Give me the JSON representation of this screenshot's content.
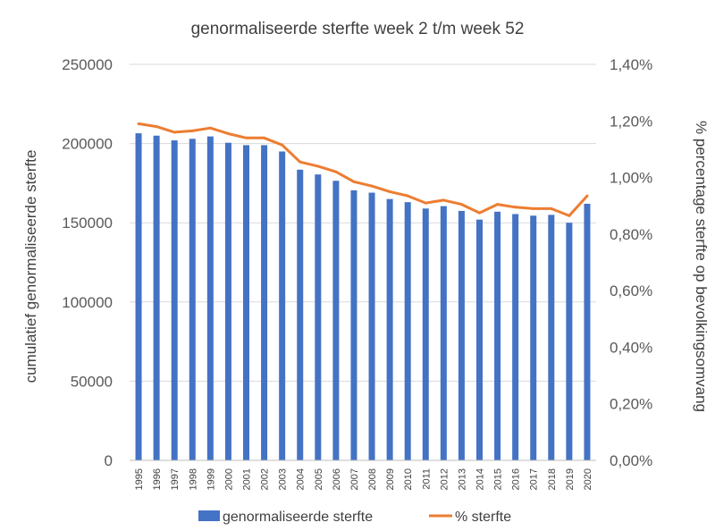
{
  "chart_data": {
    "type": "bar",
    "title": "genormaliseerde sterfte week 2 t/m week 52",
    "ylabel": "cumulatief genormaliseerde sterfte",
    "y2label": "% percentage sterfte op bevolkingsomvang",
    "ylim": [
      0,
      250000
    ],
    "y2lim": [
      0,
      1.4
    ],
    "yticks": [
      "0",
      "50000",
      "100000",
      "150000",
      "200000",
      "250000"
    ],
    "y2ticks": [
      "0,00%",
      "0,20%",
      "0,40%",
      "0,60%",
      "0,80%",
      "1,00%",
      "1,20%",
      "1,40%"
    ],
    "grid": true,
    "legend_position": "bottom",
    "categories": [
      "1995",
      "1996",
      "1997",
      "1998",
      "1999",
      "2000",
      "2001",
      "2002",
      "2003",
      "2004",
      "2005",
      "2006",
      "2007",
      "2008",
      "2009",
      "2010",
      "2011",
      "2012",
      "2013",
      "2014",
      "2015",
      "2016",
      "2017",
      "2018",
      "2019",
      "2020"
    ],
    "series": [
      {
        "name": "genormaliseerde sterfte",
        "kind": "bar",
        "axis": "left",
        "color": "#4472C4",
        "values": [
          206500,
          205000,
          202000,
          203000,
          204500,
          200500,
          199000,
          199000,
          195000,
          183500,
          180500,
          176500,
          170500,
          169000,
          165000,
          163000,
          159000,
          160500,
          157500,
          152000,
          157000,
          155500,
          154500,
          155000,
          150000,
          162000
        ]
      },
      {
        "name": "% sterfte",
        "kind": "line",
        "axis": "right",
        "color": "#ED7D31",
        "values": [
          1.19,
          1.18,
          1.16,
          1.165,
          1.175,
          1.155,
          1.14,
          1.14,
          1.115,
          1.055,
          1.04,
          1.02,
          0.985,
          0.97,
          0.95,
          0.935,
          0.91,
          0.92,
          0.905,
          0.875,
          0.905,
          0.895,
          0.89,
          0.89,
          0.865,
          0.935
        ]
      }
    ]
  }
}
